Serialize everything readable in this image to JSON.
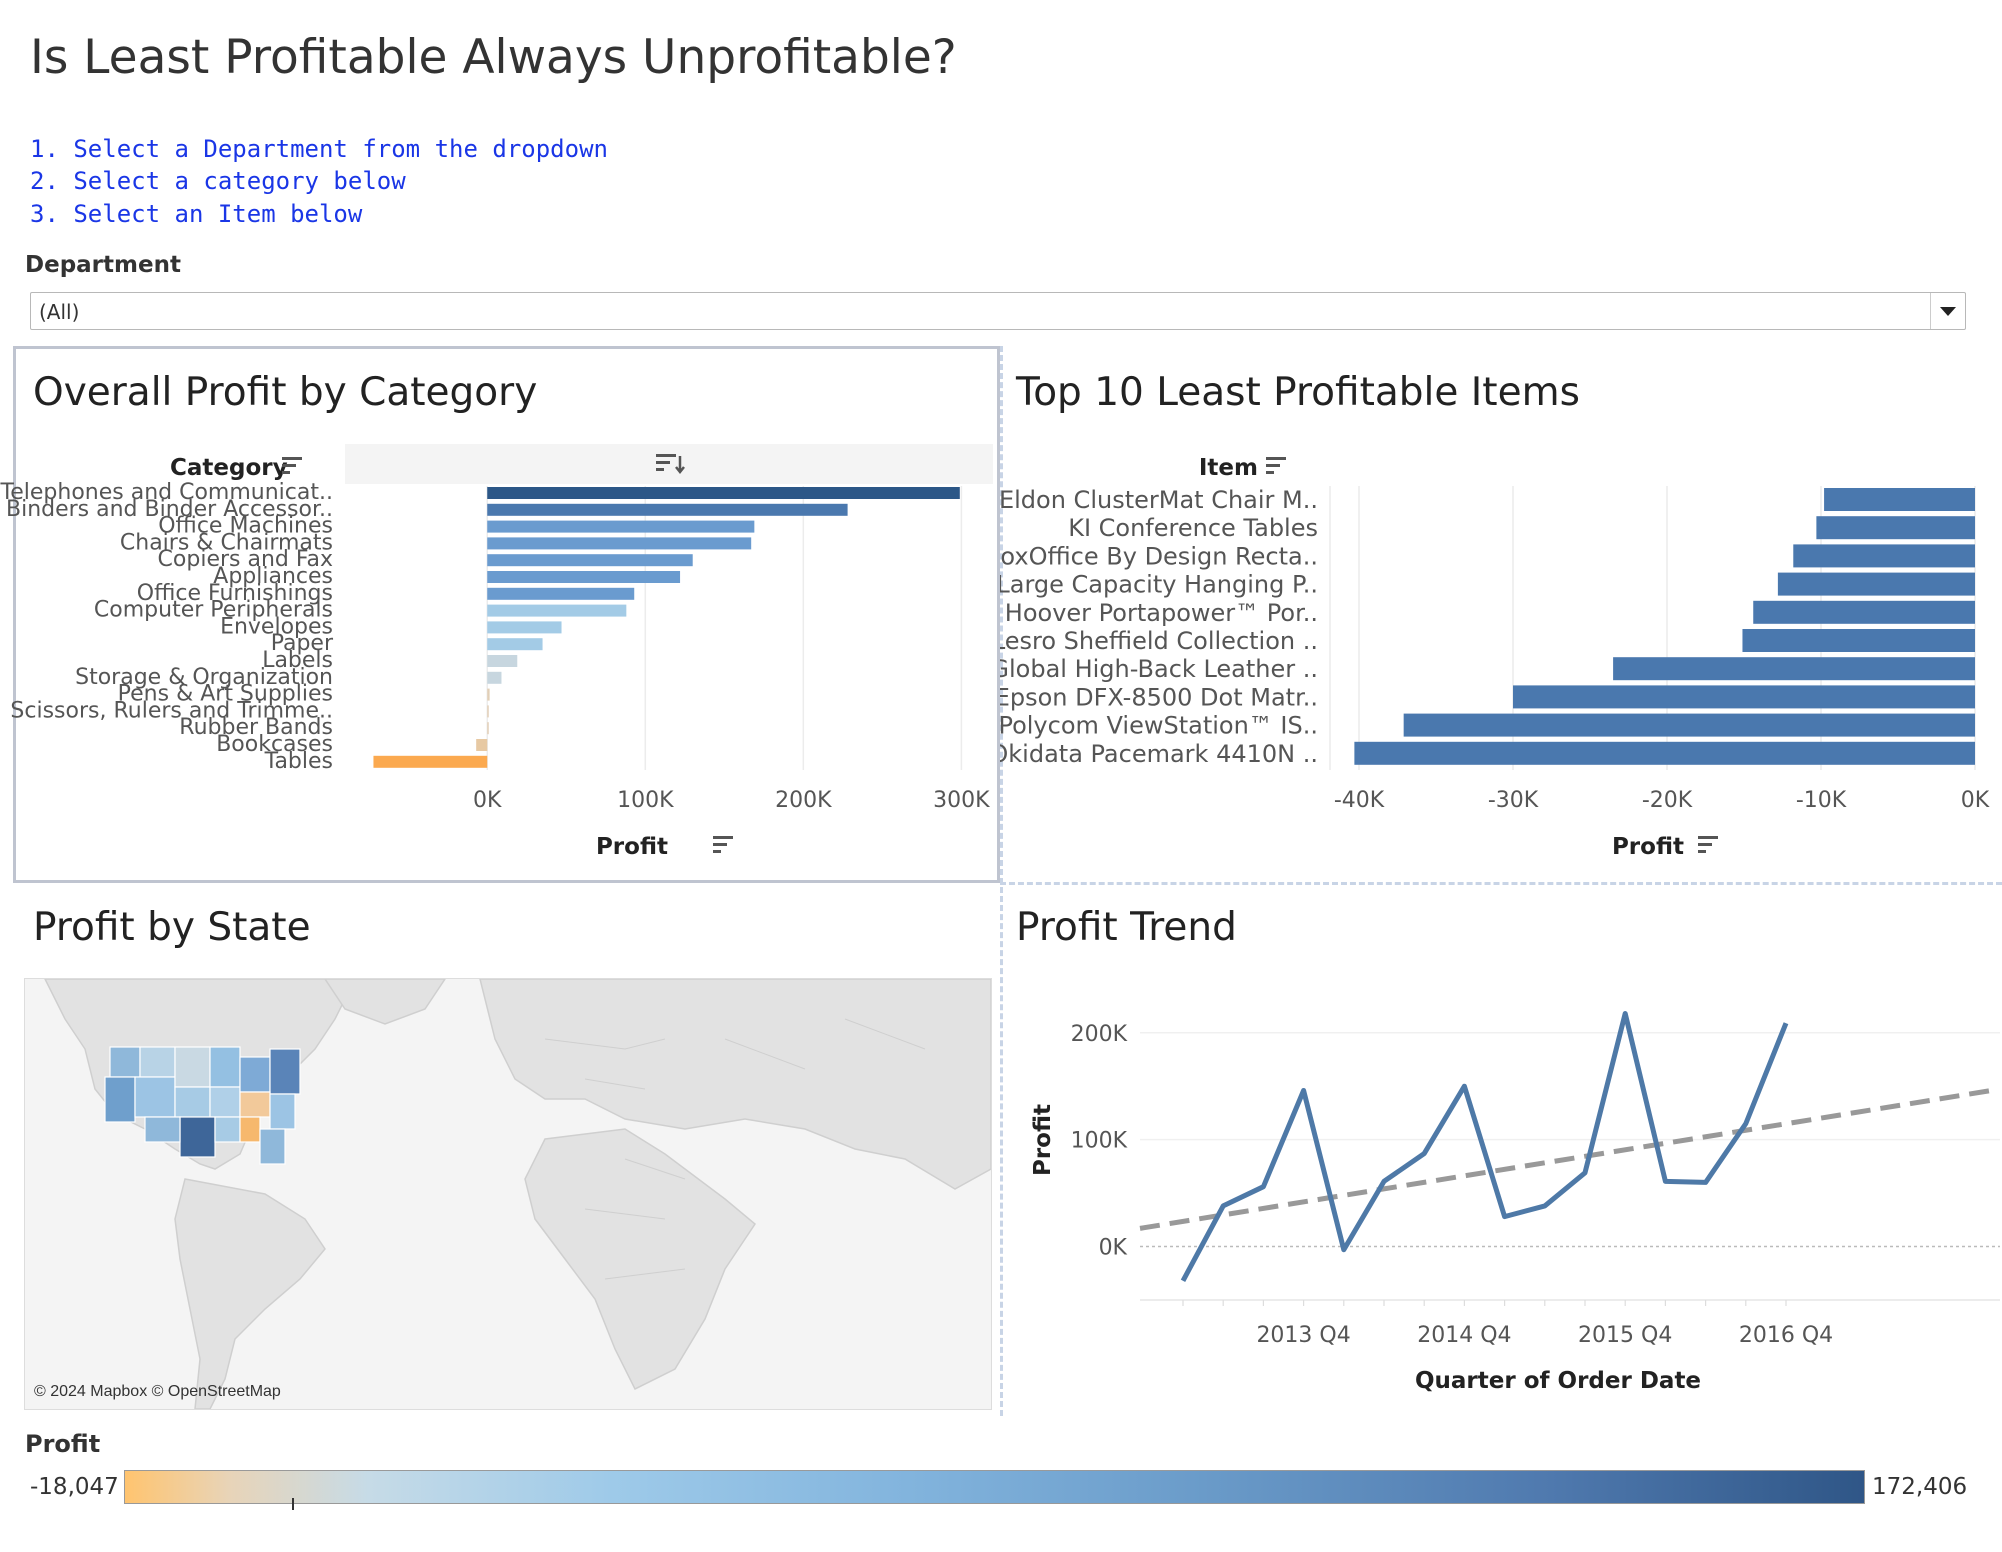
{
  "dashboard": {
    "title": "Is Least Profitable Always Unprofitable?",
    "instructions": [
      "1. Select a Department from the dropdown",
      "2. Select a category below",
      "3. Select an Item below"
    ],
    "department_filter": {
      "label": "Department",
      "selected": "(All)"
    }
  },
  "colors": {
    "bar_dark": "#2f5b8c",
    "bar_mid": "#6a9bcf",
    "bar_light": "#a9cfe6",
    "negative": "#fba94f",
    "line": "#4e79a7",
    "trend": "#999999"
  },
  "chart_data": [
    {
      "type": "bar",
      "title": "Overall Profit by Category",
      "orientation": "horizontal",
      "category_header": "Category",
      "xlabel": "Profit",
      "xlim": [
        -90000,
        320000
      ],
      "x_ticks": [
        "0K",
        "100K",
        "200K",
        "300K"
      ],
      "x_tick_values": [
        0,
        100000,
        200000,
        300000
      ],
      "categories": [
        "Telephones and Communicat..",
        "Binders and Binder Accessor..",
        "Office Machines",
        "Chairs & Chairmats",
        "Copiers and Fax",
        "Appliances",
        "Office Furnishings",
        "Computer Peripherals",
        "Envelopes",
        "Paper",
        "Labels",
        "Storage & Organization",
        "Pens & Art Supplies",
        "Scissors, Rulers and Trimme..",
        "Rubber Bands",
        "Bookcases",
        "Tables"
      ],
      "values": [
        299000,
        228000,
        169000,
        167000,
        130000,
        122000,
        93000,
        88000,
        47000,
        35000,
        19000,
        9000,
        1500,
        800,
        500,
        -7000,
        -72000
      ]
    },
    {
      "type": "bar",
      "title": "Top 10 Least Profitable Items",
      "orientation": "horizontal",
      "category_header": "Item",
      "xlabel": "Profit",
      "xlim": [
        -40000,
        0
      ],
      "x_ticks": [
        "-40K",
        "-30K",
        "-20K",
        "-10K",
        "0K"
      ],
      "x_tick_values": [
        -40000,
        -30000,
        -20000,
        -10000,
        0
      ],
      "categories": [
        "Eldon ClusterMat Chair M..",
        "KI Conference Tables",
        "BoxOffice By Design Recta..",
        "Large Capacity Hanging P..",
        "Hoover Portapower™ Por..",
        "Lesro Sheffield Collection ..",
        "Global High-Back Leather ..",
        "Epson DFX-8500 Dot Matr..",
        "Polycom ViewStation™ IS..",
        "Okidata Pacemark 4410N .."
      ],
      "values": [
        -9800,
        -10300,
        -11800,
        -12800,
        -14400,
        -15100,
        -23500,
        -30000,
        -37100,
        -40300
      ]
    },
    {
      "type": "line",
      "title": "Profit Trend",
      "xlabel": "Quarter of Order Date",
      "ylabel": "Profit",
      "x_ticks": [
        "2013 Q4",
        "2014 Q4",
        "2015 Q4",
        "2016 Q4"
      ],
      "y_ticks": [
        "0K",
        "100K",
        "200K"
      ],
      "ylim": [
        -50000,
        240000
      ],
      "x": [
        "2013 Q1",
        "2013 Q2",
        "2013 Q3",
        "2013 Q4",
        "2014 Q1",
        "2014 Q2",
        "2014 Q3",
        "2014 Q4",
        "2015 Q1",
        "2015 Q2",
        "2015 Q3",
        "2015 Q4",
        "2016 Q1",
        "2016 Q2",
        "2016 Q3",
        "2016 Q4"
      ],
      "values": [
        -32000,
        38000,
        56000,
        146000,
        -3000,
        61000,
        87000,
        150000,
        28000,
        38000,
        69000,
        218000,
        61000,
        60000,
        115000,
        209000
      ],
      "trend_line": {
        "start": 17000,
        "end": 147000,
        "style": "dashed"
      }
    },
    {
      "type": "heatmap",
      "title": "Profit by State",
      "legend_title": "Profit",
      "range": [
        -18047,
        172406
      ],
      "legend_min_label": "-18,047",
      "legend_max_label": "172,406",
      "attribution": "© 2024 Mapbox © OpenStreetMap"
    }
  ]
}
